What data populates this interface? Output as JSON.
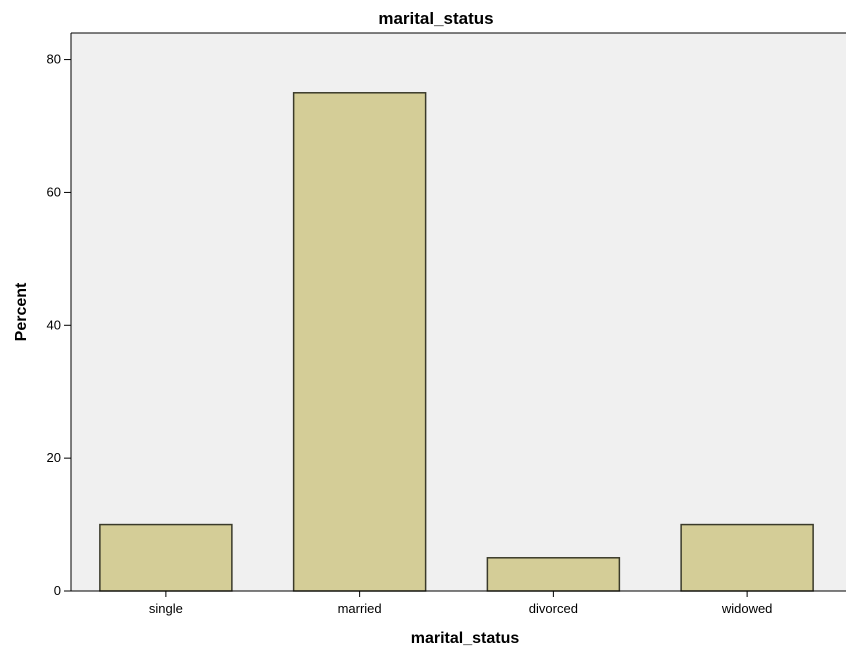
{
  "chart_data": {
    "type": "bar",
    "title": "marital_status",
    "xlabel": "marital_status",
    "ylabel": "Percent",
    "categories": [
      "single",
      "married",
      "divorced",
      "widowed"
    ],
    "values": [
      10,
      75,
      5,
      10
    ],
    "ylim": [
      0,
      84
    ],
    "yticks": [
      0,
      20,
      40,
      60,
      80
    ],
    "grid": false,
    "colors": {
      "bar_fill": "#d4cd97",
      "bar_stroke": "#3a3a2a",
      "plot_background": "#f0f0f0",
      "axis": "#000000"
    }
  }
}
